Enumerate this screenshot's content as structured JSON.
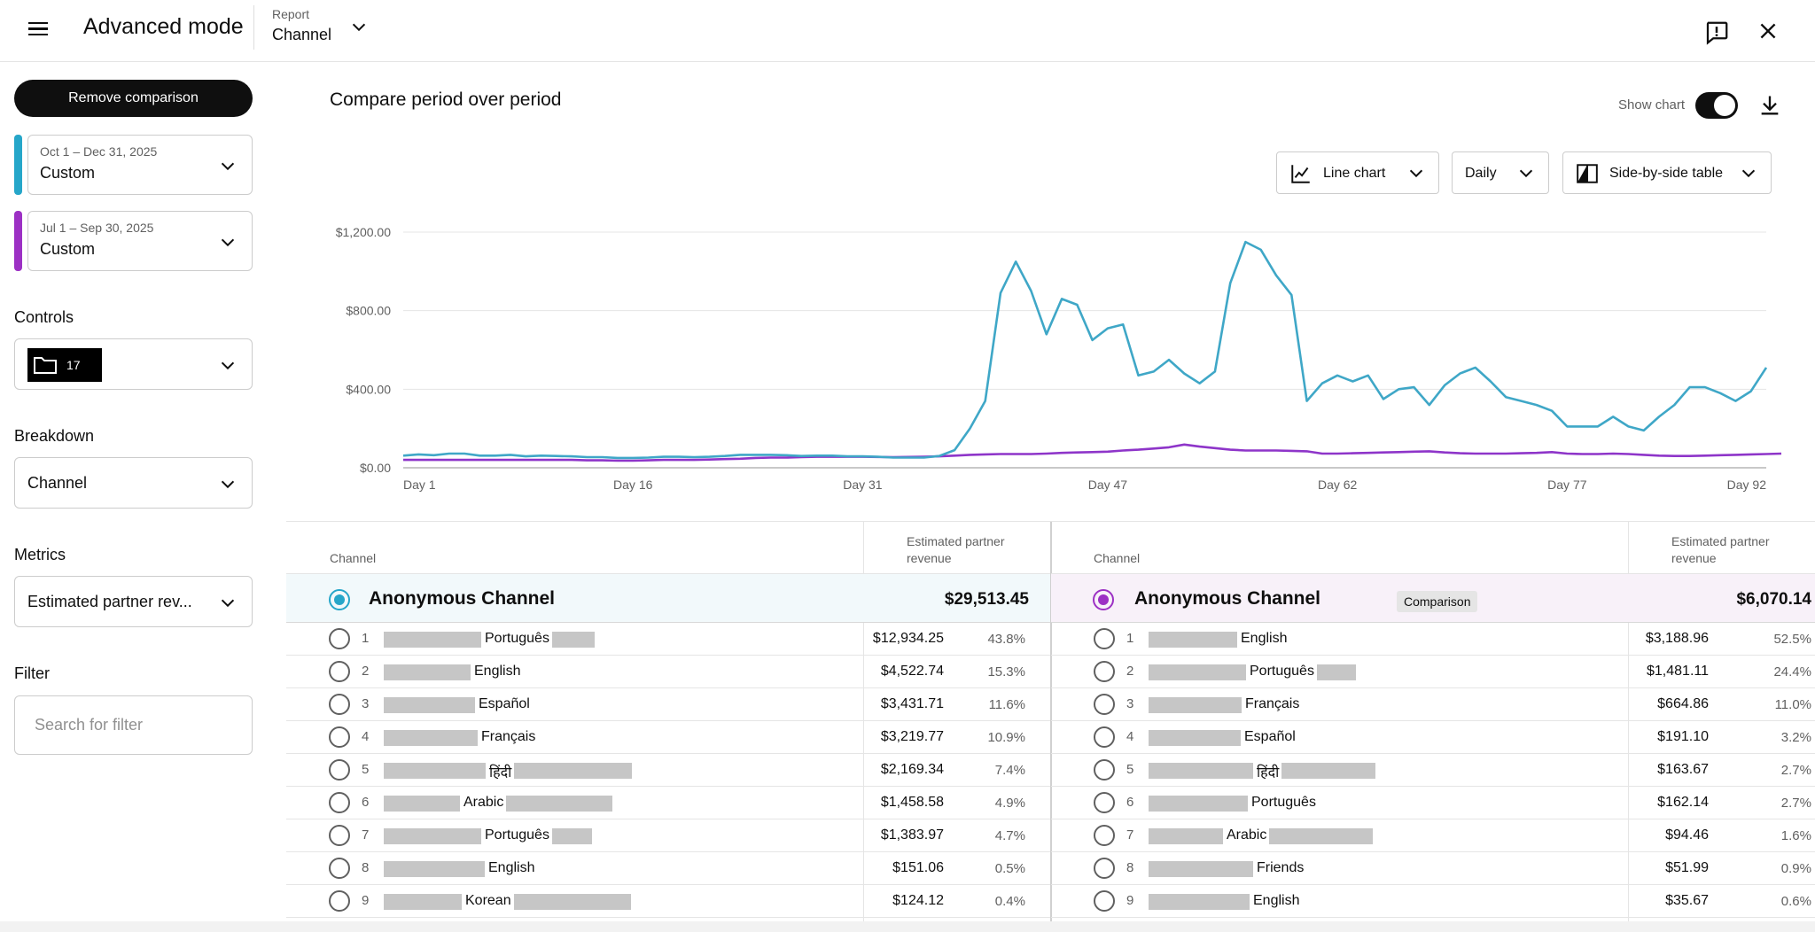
{
  "header": {
    "title": "Advanced mode",
    "report_label": "Report",
    "report_value": "Channel"
  },
  "sidebar": {
    "remove_comparison": "Remove comparison",
    "period_primary": {
      "dates": "Oct 1 – Dec 31, 2025",
      "label": "Custom",
      "color": "#26a6c9"
    },
    "period_compare": {
      "dates": "Jul 1 – Sep 30, 2025",
      "label": "Custom",
      "color": "#9c30c4"
    },
    "controls_label": "Controls",
    "controls_count": "17",
    "breakdown_label": "Breakdown",
    "breakdown_value": "Channel",
    "metrics_label": "Metrics",
    "metrics_value": "Estimated partner rev...",
    "filter_label": "Filter",
    "filter_placeholder": "Search for filter"
  },
  "main": {
    "title": "Compare period over period",
    "show_chart": "Show chart",
    "chart_type": "Line chart",
    "granularity": "Daily",
    "table_mode": "Side-by-side table"
  },
  "chart_data": {
    "type": "line",
    "ylim": [
      0,
      1200
    ],
    "yticks": [
      "$0.00",
      "$400.00",
      "$800.00",
      "$1,200.00"
    ],
    "xticks": [
      "Day 1",
      "Day 16",
      "Day 31",
      "Day 47",
      "Day 62",
      "Day 77",
      "Day 92"
    ],
    "grid": true,
    "series": [
      {
        "color": "#3fa7c7",
        "values": [
          62,
          68,
          64,
          72,
          72,
          62,
          62,
          66,
          58,
          62,
          60,
          58,
          54,
          54,
          50,
          50,
          52,
          56,
          56,
          54,
          56,
          60,
          66,
          66,
          66,
          64,
          60,
          62,
          62,
          58,
          58,
          56,
          52,
          52,
          52,
          60,
          90,
          200,
          340,
          890,
          1050,
          900,
          680,
          860,
          830,
          650,
          710,
          730,
          470,
          490,
          550,
          480,
          430,
          490,
          940,
          1150,
          1110,
          980,
          880,
          340,
          430,
          470,
          440,
          470,
          350,
          400,
          410,
          320,
          420,
          480,
          510,
          440,
          360,
          340,
          320,
          290,
          210,
          210,
          210,
          260,
          210,
          190,
          260,
          320,
          410,
          410,
          380,
          340,
          390,
          510
        ]
      },
      {
        "color": "#8e35c9",
        "values": [
          40,
          40,
          40,
          40,
          40,
          40,
          40,
          40,
          40,
          40,
          40,
          40,
          38,
          38,
          36,
          36,
          38,
          40,
          40,
          40,
          42,
          44,
          46,
          50,
          52,
          52,
          54,
          56,
          56,
          56,
          56,
          55,
          54,
          55,
          56,
          58,
          62,
          66,
          68,
          70,
          70,
          70,
          72,
          76,
          78,
          80,
          82,
          88,
          92,
          98,
          104,
          118,
          108,
          100,
          92,
          88,
          88,
          88,
          86,
          84,
          72,
          72,
          74,
          76,
          78,
          80,
          82,
          84,
          78,
          74,
          72,
          72,
          72,
          74,
          76,
          80,
          72,
          70,
          70,
          72,
          70,
          66,
          62,
          60,
          60,
          62,
          64,
          66,
          68,
          70,
          72,
          60
        ]
      }
    ]
  },
  "table": {
    "col_channel": "Channel",
    "col_revenue_line1": "Estimated partner",
    "col_revenue_line2": "revenue",
    "primary": {
      "total_name": "Anonymous Channel",
      "total_value": "$29,513.45",
      "rows": [
        {
          "rank": "1",
          "lang": "Português",
          "amount": "$12,934.25",
          "pct": "43.8%"
        },
        {
          "rank": "2",
          "lang": "English",
          "amount": "$4,522.74",
          "pct": "15.3%"
        },
        {
          "rank": "3",
          "lang": "Español",
          "amount": "$3,431.71",
          "pct": "11.6%"
        },
        {
          "rank": "4",
          "lang": "Français",
          "amount": "$3,219.77",
          "pct": "10.9%"
        },
        {
          "rank": "5",
          "lang": "हिंदी",
          "amount": "$2,169.34",
          "pct": "7.4%"
        },
        {
          "rank": "6",
          "lang": "Arabic",
          "amount": "$1,458.58",
          "pct": "4.9%"
        },
        {
          "rank": "7",
          "lang": "Português",
          "amount": "$1,383.97",
          "pct": "4.7%"
        },
        {
          "rank": "8",
          "lang": "English",
          "amount": "$151.06",
          "pct": "0.5%"
        },
        {
          "rank": "9",
          "lang": "Korean",
          "amount": "$124.12",
          "pct": "0.4%"
        }
      ]
    },
    "compare": {
      "total_name": "Anonymous Channel",
      "badge": "Comparison",
      "total_value": "$6,070.14",
      "rows": [
        {
          "rank": "1",
          "lang": "English",
          "amount": "$3,188.96",
          "pct": "52.5%"
        },
        {
          "rank": "2",
          "lang": "Português",
          "amount": "$1,481.11",
          "pct": "24.4%"
        },
        {
          "rank": "3",
          "lang": "Français",
          "amount": "$664.86",
          "pct": "11.0%"
        },
        {
          "rank": "4",
          "lang": "Español",
          "amount": "$191.10",
          "pct": "3.2%"
        },
        {
          "rank": "5",
          "lang": "हिंदी",
          "amount": "$163.67",
          "pct": "2.7%"
        },
        {
          "rank": "6",
          "lang": "Português",
          "amount": "$162.14",
          "pct": "2.7%"
        },
        {
          "rank": "7",
          "lang": "Arabic",
          "amount": "$94.46",
          "pct": "1.6%"
        },
        {
          "rank": "8",
          "lang": "Friends",
          "amount": "$51.99",
          "pct": "0.9%"
        },
        {
          "rank": "9",
          "lang": "English",
          "amount": "$35.67",
          "pct": "0.6%"
        }
      ]
    }
  }
}
